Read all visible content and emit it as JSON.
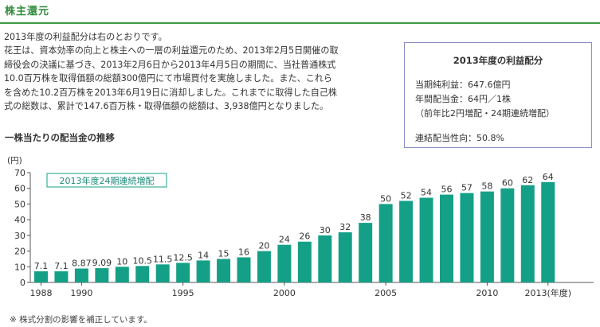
{
  "section_title": "株主還元",
  "intro_lines": [
    "2013年度の利益配分は右のとおりです。",
    "花王は、資本効率の向上と株主への一層の利益還元のため、2013年2月5日開催の取",
    "締役会の決議に基づき、2013年2月6日から2013年4月5日の期間に、当社普通株式",
    "10.0百万株を取得価額の総額300億円にて市場買付を実施しました。また、これら",
    "を含めた10.2百万株を2013年6月19日に消却しました。これまでに取得した自己株",
    "式の総数は、累計で147.6百万株・取得価額の総額は、3,938億円となりました。"
  ],
  "summary": {
    "title": "2013年度の利益配分",
    "net_income": "当期純利益：647.6億円",
    "annual_dividend": "年間配当金：64円／1株",
    "dividend_note": "（前年比2円増配・24期連続増配）",
    "payout_ratio": "連結配当性向：50.8%"
  },
  "chart_title": "一株当たりの配当金の推移",
  "footnote": "※ 株式分割の影響を補正しています。",
  "colors": {
    "bar": "#14a087",
    "title": "#2e8b3a",
    "box_border": "#8a8fc4"
  },
  "chart_data": {
    "type": "bar",
    "x": [
      1988,
      1989,
      1990,
      1991,
      1992,
      1993,
      1994,
      1995,
      1996,
      1997,
      1998,
      1999,
      2000,
      2001,
      2002,
      2003,
      2004,
      2005,
      2006,
      2007,
      2008,
      2009,
      2010,
      2011,
      2012,
      2013
    ],
    "values": [
      7.1,
      7.1,
      8.87,
      9.09,
      10,
      10.5,
      11.5,
      12.5,
      14,
      15,
      16,
      20,
      24,
      26,
      30,
      32,
      38,
      50,
      52,
      54,
      56,
      57,
      58,
      60,
      62,
      64
    ],
    "value_labels": [
      "7.1",
      "7.1",
      "8.87",
      "9.09",
      "10",
      "10.5",
      "11.5",
      "12.5",
      "14",
      "15",
      "16",
      "20",
      "24",
      "26",
      "30",
      "32",
      "38",
      "50",
      "52",
      "54",
      "56",
      "57",
      "58",
      "60",
      "62",
      "64"
    ],
    "x_tick_labels": [
      {
        "year": 1988,
        "label": "1988"
      },
      {
        "year": 1990,
        "label": "1990"
      },
      {
        "year": 1995,
        "label": "1995"
      },
      {
        "year": 2000,
        "label": "2000"
      },
      {
        "year": 2005,
        "label": "2005"
      },
      {
        "year": 2010,
        "label": "2010"
      },
      {
        "year": 2013,
        "label": "2013(年度)"
      }
    ],
    "y_ticks": [
      0,
      10,
      20,
      30,
      40,
      50,
      60,
      70
    ],
    "ylim": [
      0,
      70
    ],
    "ylabel": "(円)",
    "xlabel": "",
    "annotation": "2013年度24期連続増配",
    "grid": false
  }
}
